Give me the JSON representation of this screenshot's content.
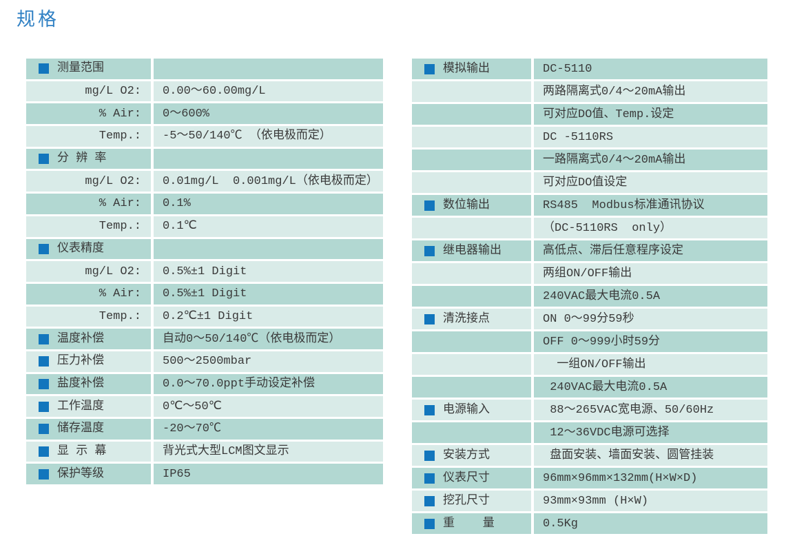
{
  "page_title": "规格",
  "colors": {
    "title_blue": "#3181c4",
    "row_dark": "#b2d8d2",
    "row_light": "#d9ebe8",
    "bullet_blue": "#1276bd",
    "text": "#3a3a3a",
    "background": "#ffffff"
  },
  "left_table": {
    "rows": [
      {
        "type": "section",
        "label": "测量范围",
        "value": ""
      },
      {
        "type": "sub",
        "label": "mg/L O2:",
        "value": "0.00～60.00mg/L"
      },
      {
        "type": "sub",
        "label": "% Air:",
        "value": "0～600%"
      },
      {
        "type": "sub",
        "label": "Temp.:",
        "value": "-5～50/140℃ （依电极而定）"
      },
      {
        "type": "section",
        "label": "分 辨 率",
        "value": ""
      },
      {
        "type": "sub",
        "label": "mg/L O2:",
        "value": "0.01mg/L  0.001mg/L（依电极而定）"
      },
      {
        "type": "sub",
        "label": "% Air:",
        "value": "0.1%"
      },
      {
        "type": "sub",
        "label": "Temp.:",
        "value": "0.1℃"
      },
      {
        "type": "section",
        "label": "仪表精度",
        "value": ""
      },
      {
        "type": "sub",
        "label": "mg/L O2:",
        "value": "0.5%±1 Digit"
      },
      {
        "type": "sub",
        "label": "% Air:",
        "value": "0.5%±1 Digit"
      },
      {
        "type": "sub",
        "label": "Temp.:",
        "value": "0.2℃±1 Digit"
      },
      {
        "type": "section",
        "label": "温度补偿",
        "value": "自动0～50/140℃（依电极而定）"
      },
      {
        "type": "section",
        "label": "压力补偿",
        "value": "500～2500mbar"
      },
      {
        "type": "section",
        "label": "盐度补偿",
        "value": "0.0～70.0ppt手动设定补偿"
      },
      {
        "type": "section",
        "label": "工作温度",
        "value": "0℃～50℃"
      },
      {
        "type": "section",
        "label": "储存温度",
        "value": "-20～70℃"
      },
      {
        "type": "section",
        "label": "显 示 幕",
        "value": "背光式大型LCM图文显示"
      },
      {
        "type": "section",
        "label": "保护等级",
        "value": "IP65"
      }
    ]
  },
  "right_table": {
    "rows": [
      {
        "type": "section",
        "label": "模拟输出",
        "value": "DC-5110"
      },
      {
        "type": "cont",
        "label": "",
        "value": "两路隔离式0/4～20mA输出"
      },
      {
        "type": "cont",
        "label": "",
        "value": "可对应DO值、Temp.设定"
      },
      {
        "type": "cont",
        "label": "",
        "value": "DC -5110RS"
      },
      {
        "type": "cont",
        "label": "",
        "value": "一路隔离式0/4～20mA输出"
      },
      {
        "type": "cont",
        "label": "",
        "value": "可对应DO值设定"
      },
      {
        "type": "section",
        "label": "数位输出",
        "value": "RS485  Modbus标准通讯协议"
      },
      {
        "type": "cont",
        "label": "",
        "value": "（DC-5110RS  only）"
      },
      {
        "type": "section",
        "label": "继电器输出",
        "value": "高低点、滞后任意程序设定"
      },
      {
        "type": "cont",
        "label": "",
        "value": "两组ON/OFF输出"
      },
      {
        "type": "cont",
        "label": "",
        "value": "240VAC最大电流0.5A"
      },
      {
        "type": "section",
        "label": "清洗接点",
        "value": "ON 0～99分59秒"
      },
      {
        "type": "cont",
        "label": "",
        "value": "OFF 0～999小时59分"
      },
      {
        "type": "cont",
        "label": "",
        "value": "  一组ON/OFF输出"
      },
      {
        "type": "cont",
        "label": "",
        "value": " 240VAC最大电流0.5A"
      },
      {
        "type": "section",
        "label": "电源输入",
        "value": " 88～265VAC宽电源、50/60Hz"
      },
      {
        "type": "cont",
        "label": "",
        "value": " 12～36VDC电源可选择"
      },
      {
        "type": "section",
        "label": "安装方式",
        "value": " 盘面安装、墙面安装、圆管挂装"
      },
      {
        "type": "section",
        "label": "仪表尺寸",
        "value": "96mm×96mm×132mm(H×W×D)"
      },
      {
        "type": "section",
        "label": "挖孔尺寸",
        "value": "93mm×93mm (H×W)"
      },
      {
        "type": "section",
        "label": "重    量",
        "value": "0.5Kg"
      }
    ]
  }
}
